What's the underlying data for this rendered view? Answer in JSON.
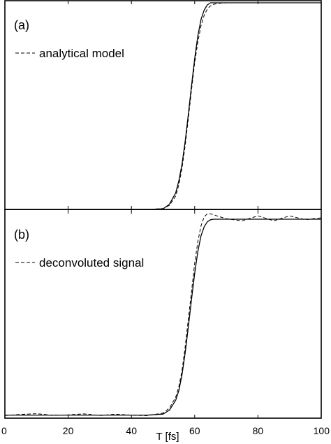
{
  "chart_data": [
    {
      "type": "line",
      "panel_label": "(a)",
      "xlim": [
        0,
        100
      ],
      "ylim": [
        0,
        1
      ],
      "xlabel": "",
      "ylabel": "",
      "grid": false,
      "legend": [
        {
          "name": "analytical model",
          "style": "dashed"
        }
      ],
      "legend_position": "top-left",
      "series": [
        {
          "name": "",
          "style": "solid",
          "x": [
            0,
            45,
            50,
            52,
            54,
            55,
            56,
            57,
            58,
            59,
            60,
            61,
            62,
            63,
            64,
            65,
            66,
            68,
            70,
            100
          ],
          "y": [
            0,
            0,
            0.003,
            0.025,
            0.08,
            0.14,
            0.22,
            0.33,
            0.46,
            0.6,
            0.73,
            0.84,
            0.92,
            0.965,
            0.99,
            1.0,
            1.0,
            1.0,
            1.0,
            1.0
          ]
        },
        {
          "name": "analytical model",
          "style": "dashed",
          "x": [
            0,
            45,
            50,
            52,
            54,
            55,
            56,
            57,
            58,
            59,
            60,
            61,
            62,
            63,
            64,
            65,
            66,
            68,
            70,
            100
          ],
          "y": [
            0,
            0,
            0.004,
            0.02,
            0.065,
            0.12,
            0.2,
            0.31,
            0.44,
            0.58,
            0.71,
            0.81,
            0.89,
            0.94,
            0.97,
            0.985,
            0.993,
            0.998,
            1.0,
            1.0
          ]
        }
      ]
    },
    {
      "type": "line",
      "panel_label": "(b)",
      "xlim": [
        0,
        100
      ],
      "ylim": [
        0,
        1
      ],
      "xticks": [
        0,
        20,
        40,
        60,
        80,
        100
      ],
      "xlabel": "T [fs]",
      "ylabel": "",
      "grid": false,
      "legend": [
        {
          "name": "deconvoluted signal",
          "style": "dashed"
        }
      ],
      "legend_position": "top-left",
      "series": [
        {
          "name": "",
          "style": "solid",
          "x": [
            0,
            45,
            50,
            52,
            54,
            55,
            56,
            57,
            58,
            59,
            60,
            61,
            62,
            63,
            64,
            65,
            66,
            68,
            70,
            100
          ],
          "y": [
            0.005,
            0.005,
            0.01,
            0.03,
            0.08,
            0.13,
            0.21,
            0.32,
            0.45,
            0.59,
            0.72,
            0.83,
            0.91,
            0.955,
            0.98,
            0.99,
            0.993,
            0.993,
            0.993,
            0.993
          ]
        },
        {
          "name": "deconvoluted signal",
          "style": "dashed",
          "x": [
            0,
            5,
            10,
            15,
            20,
            25,
            30,
            35,
            40,
            45,
            50,
            52,
            54,
            55,
            56,
            57,
            58,
            59,
            60,
            61,
            62,
            63,
            64,
            65,
            66,
            68,
            70,
            75,
            80,
            85,
            90,
            95,
            100
          ],
          "y": [
            0.003,
            0.008,
            0.012,
            0.004,
            0.006,
            0.011,
            0.003,
            0.009,
            0.005,
            0.002,
            0.015,
            0.04,
            0.095,
            0.15,
            0.23,
            0.35,
            0.49,
            0.63,
            0.77,
            0.88,
            0.96,
            1.005,
            1.02,
            1.02,
            1.015,
            1.005,
            0.995,
            0.985,
            1.01,
            0.985,
            1.01,
            0.99,
            1.0
          ]
        }
      ]
    }
  ]
}
